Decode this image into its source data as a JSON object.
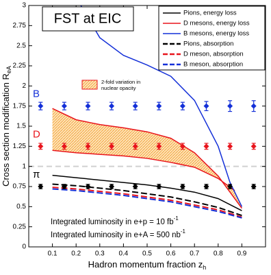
{
  "chart_data": {
    "type": "line",
    "title": "FST at EIC",
    "x_label": {
      "text": "Hadron momentum fraction z",
      "sub": "h"
    },
    "y_label": {
      "text": "Cross section modification R",
      "sub": "eA"
    },
    "xlim": [
      0,
      1
    ],
    "ylim": [
      0,
      3
    ],
    "xticks": [
      0.1,
      0.2,
      0.3,
      0.4,
      0.5,
      0.6,
      0.7,
      0.8,
      0.9
    ],
    "yticks": [
      0,
      0.25,
      0.5,
      0.75,
      1,
      1.25,
      1.5,
      1.75,
      2,
      2.25,
      2.5,
      2.75,
      3
    ],
    "reference_line": 1,
    "series": [
      {
        "name": "Pions, energy loss",
        "color": "#000000",
        "dash": false,
        "x": [
          0.1,
          0.2,
          0.3,
          0.4,
          0.5,
          0.6,
          0.7,
          0.8,
          0.9
        ],
        "values": [
          0.89,
          0.86,
          0.83,
          0.8,
          0.77,
          0.73,
          0.68,
          0.6,
          0.45
        ]
      },
      {
        "name": "D mesons, energy loss",
        "color": "#e8141c",
        "dash": false,
        "x": [
          0.1,
          0.2,
          0.3,
          0.4,
          0.5,
          0.6,
          0.7,
          0.8,
          0.9
        ],
        "values": [
          1.72,
          1.58,
          1.52,
          1.48,
          1.43,
          1.35,
          1.17,
          0.88,
          0.48
        ]
      },
      {
        "name": "B mesons, energy loss",
        "color": "#1430d8",
        "dash": false,
        "x": [
          0.2,
          0.3,
          0.4,
          0.5,
          0.6,
          0.7,
          0.8,
          0.85,
          0.9
        ],
        "values": [
          3.1,
          2.6,
          2.38,
          2.26,
          2.12,
          1.82,
          1.25,
          0.8,
          0.5
        ]
      },
      {
        "name": "Pions, absorption",
        "color": "#000000",
        "dash": true,
        "x": [
          0.1,
          0.2,
          0.3,
          0.4,
          0.5,
          0.6,
          0.7,
          0.8,
          0.9
        ],
        "values": [
          0.78,
          0.76,
          0.73,
          0.7,
          0.66,
          0.62,
          0.56,
          0.49,
          0.39
        ]
      },
      {
        "name": "D meson, absorption",
        "color": "#e8141c",
        "dash": true,
        "x": [
          0.1,
          0.2,
          0.3,
          0.4,
          0.5,
          0.6,
          0.7,
          0.8,
          0.9
        ],
        "values": [
          0.74,
          0.72,
          0.69,
          0.66,
          0.62,
          0.58,
          0.52,
          0.46,
          0.37
        ]
      },
      {
        "name": "B meson, absorption",
        "color": "#1430d8",
        "dash": true,
        "x": [
          0.1,
          0.2,
          0.3,
          0.4,
          0.5,
          0.6,
          0.7,
          0.8,
          0.9
        ],
        "values": [
          0.72,
          0.7,
          0.67,
          0.64,
          0.6,
          0.56,
          0.5,
          0.44,
          0.36
        ]
      }
    ],
    "band": {
      "label": [
        "2-fold variation in",
        "nuclear opacity"
      ],
      "color": "#e8141c",
      "x": [
        0.1,
        0.2,
        0.3,
        0.4,
        0.5,
        0.6,
        0.7,
        0.8,
        0.87
      ],
      "lower": [
        1.2,
        1.17,
        1.15,
        1.13,
        1.1,
        1.05,
        0.99,
        0.85,
        0.7
      ]
    },
    "points": {
      "x": [
        0.05,
        0.15,
        0.25,
        0.35,
        0.45,
        0.55,
        0.65,
        0.75,
        0.85,
        0.95
      ],
      "series": [
        {
          "name": "B",
          "color": "#1430d8",
          "values": [
            1.75,
            1.75,
            1.75,
            1.75,
            1.75,
            1.75,
            1.75,
            1.75,
            1.75,
            1.75
          ],
          "errors": [
            0.03,
            0.03,
            0.03,
            0.03,
            0.03,
            0.03,
            0.03,
            0.04,
            0.05,
            0.05
          ]
        },
        {
          "name": "D",
          "color": "#e8141c",
          "values": [
            1.25,
            1.25,
            1.25,
            1.25,
            1.25,
            1.25,
            1.25,
            1.25,
            1.25,
            1.25
          ],
          "errors": [
            0.02,
            0.02,
            0.02,
            0.02,
            0.02,
            0.02,
            0.02,
            0.02,
            0.02,
            0.02
          ]
        },
        {
          "name": "π",
          "color": "#000000",
          "values": [
            0.75,
            0.75,
            0.75,
            0.75,
            0.75,
            0.75,
            0.75,
            0.75,
            0.75,
            0.75
          ],
          "errors": [
            0.01,
            0.01,
            0.01,
            0.01,
            0.01,
            0.01,
            0.01,
            0.01,
            0.01,
            0.01
          ]
        }
      ]
    },
    "annotations": [
      {
        "text": "Integrated luminosity in e+p = 10 fb",
        "sup": "-1"
      },
      {
        "text": "Integrated luminosity in e+A = 500 nb",
        "sup": "-1"
      }
    ]
  }
}
